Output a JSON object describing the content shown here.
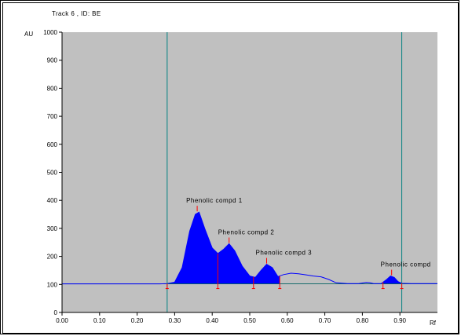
{
  "chart_data": {
    "type": "area",
    "title": "Track  6 , ID: BE",
    "xlabel": "Rf",
    "ylabel": "AU",
    "xlim": [
      0.0,
      1.0
    ],
    "ylim": [
      0,
      1000
    ],
    "xticks": [
      "0.00",
      "0.10",
      "0.20",
      "0.30",
      "0.40",
      "0.50",
      "0.60",
      "0.70",
      "0.80",
      "0.90"
    ],
    "yticks": [
      "0",
      "100",
      "200",
      "300",
      "400",
      "500",
      "600",
      "700",
      "800",
      "900",
      "1000"
    ],
    "baseline": 102,
    "plot_background": "#c0c0c0",
    "fill_color": "#0000ff",
    "marker_color": "#ff0000",
    "vline_color": "#008080",
    "vlines": [
      0.28,
      0.905
    ],
    "series": [
      {
        "x": [
          0.0,
          0.26,
          0.28,
          0.3,
          0.32,
          0.34,
          0.355,
          0.365,
          0.38,
          0.4,
          0.415,
          0.43,
          0.445,
          0.46,
          0.48,
          0.5,
          0.515,
          0.53,
          0.545,
          0.56,
          0.575,
          0.59,
          0.61,
          0.63,
          0.65,
          0.67,
          0.69,
          0.71,
          0.73,
          0.76,
          0.79,
          0.81,
          0.82,
          0.83,
          0.85,
          0.865,
          0.875,
          0.885,
          0.895,
          0.905,
          0.93,
          1.0
        ],
        "y": [
          102,
          102,
          103,
          108,
          160,
          290,
          350,
          358,
          300,
          230,
          210,
          225,
          245,
          220,
          165,
          130,
          125,
          150,
          172,
          160,
          128,
          135,
          140,
          138,
          134,
          130,
          127,
          118,
          106,
          103,
          103,
          107,
          106,
          103,
          103,
          118,
          130,
          125,
          110,
          104,
          103,
          103
        ]
      }
    ],
    "filled_regions": [
      [
        0.28,
        0.58
      ],
      [
        0.855,
        0.905
      ]
    ],
    "integration_marks": [
      0.28,
      0.415,
      0.51,
      0.58,
      0.855,
      0.905
    ],
    "annotations": [
      {
        "text": "Phenolic compd 1",
        "x": 0.36,
        "y": 358
      },
      {
        "text": "Phenolic compd 2",
        "x": 0.445,
        "y": 245
      },
      {
        "text": "Phenolic compd 3",
        "x": 0.545,
        "y": 172
      },
      {
        "text": "Phenolic compd",
        "x": 0.878,
        "y": 130
      }
    ]
  }
}
